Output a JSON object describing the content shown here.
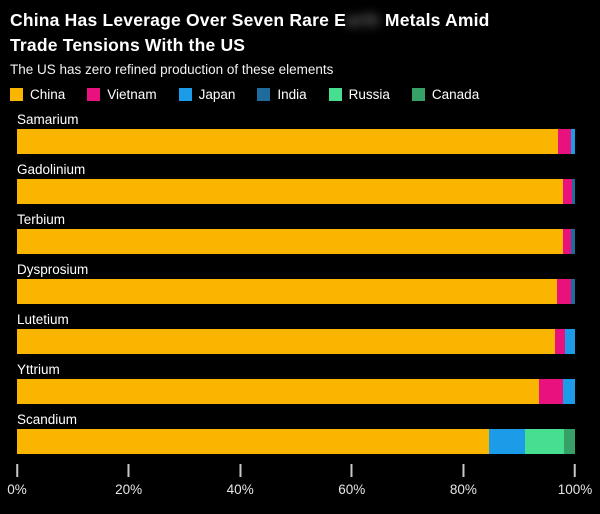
{
  "header": {
    "title_line1_prefix": "China Has Leverage Over Seven Rare E",
    "title_redacted": "arth",
    "title_line1_suffix": " Metals Amid",
    "title_line2": "Trade Tensions With the US",
    "subtitle": "The US has zero refined production of these elements"
  },
  "legend": {
    "items": [
      {
        "label": "China",
        "color": "#F9B500"
      },
      {
        "label": "Vietnam",
        "color": "#E8117D"
      },
      {
        "label": "Japan",
        "color": "#1C9CE8"
      },
      {
        "label": "India",
        "color": "#1E6B9D"
      },
      {
        "label": "Russia",
        "color": "#47DE90"
      },
      {
        "label": "Canada",
        "color": "#36A066"
      }
    ]
  },
  "chart_data": {
    "type": "bar",
    "orientation": "horizontal",
    "stacked": true,
    "unit": "percent",
    "title": "China Has Leverage Over Seven Rare Earth Metals Amid Trade Tensions With the US",
    "subtitle": "The US has zero refined production of these elements",
    "categories": [
      "Samarium",
      "Gadolinium",
      "Terbium",
      "Dysprosium",
      "Lutetium",
      "Yttrium",
      "Scandium"
    ],
    "series": [
      {
        "name": "China",
        "color": "#F9B500",
        "values": [
          97.0,
          97.9,
          97.9,
          96.8,
          96.4,
          93.5,
          84.5
        ]
      },
      {
        "name": "Vietnam",
        "color": "#E8117D",
        "values": [
          2.3,
          1.5,
          1.4,
          2.5,
          1.8,
          4.4,
          0
        ]
      },
      {
        "name": "Japan",
        "color": "#1C9CE8",
        "values": [
          0.7,
          0,
          0,
          0,
          1.8,
          2.1,
          6.5
        ]
      },
      {
        "name": "India",
        "color": "#1E6B9D",
        "values": [
          0,
          0.6,
          0.7,
          0.7,
          0,
          0,
          0
        ]
      },
      {
        "name": "Russia",
        "color": "#47DE90",
        "values": [
          0,
          0,
          0,
          0,
          0,
          0,
          7.0
        ]
      },
      {
        "name": "Canada",
        "color": "#36A066",
        "values": [
          0,
          0,
          0,
          0,
          0,
          0,
          2.0
        ]
      }
    ],
    "xlabel": "",
    "ylabel": "",
    "xlim": [
      0,
      100
    ],
    "x_ticks": [
      "0%",
      "20%",
      "40%",
      "60%",
      "80%",
      "100%"
    ],
    "grid": false,
    "legend_position": "top"
  }
}
